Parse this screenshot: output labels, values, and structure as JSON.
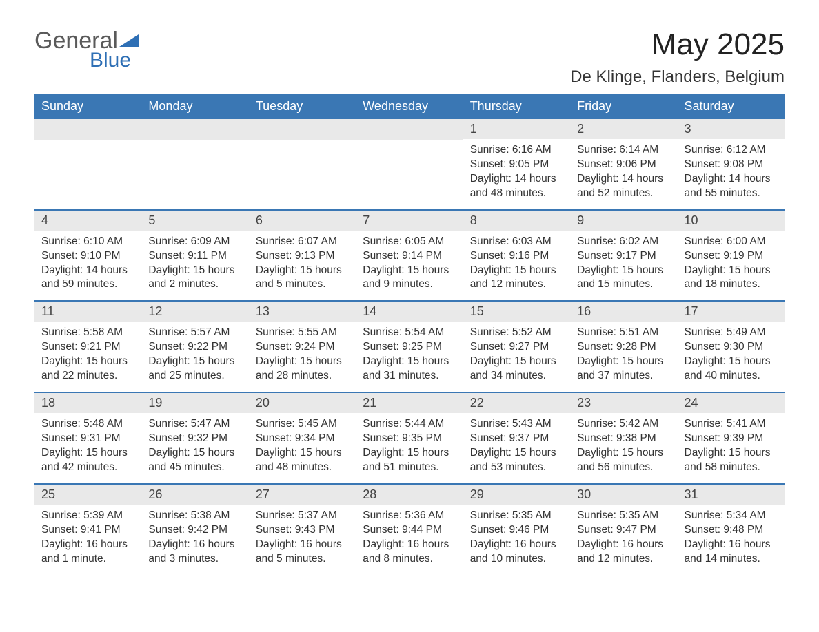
{
  "logo": {
    "word1": "General",
    "word2": "Blue"
  },
  "header": {
    "month_title": "May 2025",
    "location": "De Klinge, Flanders, Belgium"
  },
  "colors": {
    "header_bg": "#3a77b4",
    "header_text": "#ffffff",
    "day_bar_bg": "#e9e9e9",
    "day_bar_border": "#3a77b4",
    "body_text": "#333333",
    "logo_gray": "#5a5a5a",
    "logo_blue": "#2e6fb5",
    "background": "#ffffff"
  },
  "typography": {
    "month_title_fontsize": 44,
    "location_fontsize": 24,
    "column_header_fontsize": 18,
    "day_number_fontsize": 18,
    "body_fontsize": 15.5,
    "font_family": "Arial"
  },
  "columns": [
    "Sunday",
    "Monday",
    "Tuesday",
    "Wednesday",
    "Thursday",
    "Friday",
    "Saturday"
  ],
  "labels": {
    "sunrise": "Sunrise:",
    "sunset": "Sunset:",
    "daylight": "Daylight:"
  },
  "weeks": [
    [
      null,
      null,
      null,
      null,
      {
        "day": "1",
        "sunrise": "6:16 AM",
        "sunset": "9:05 PM",
        "daylight": "14 hours and 48 minutes."
      },
      {
        "day": "2",
        "sunrise": "6:14 AM",
        "sunset": "9:06 PM",
        "daylight": "14 hours and 52 minutes."
      },
      {
        "day": "3",
        "sunrise": "6:12 AM",
        "sunset": "9:08 PM",
        "daylight": "14 hours and 55 minutes."
      }
    ],
    [
      {
        "day": "4",
        "sunrise": "6:10 AM",
        "sunset": "9:10 PM",
        "daylight": "14 hours and 59 minutes."
      },
      {
        "day": "5",
        "sunrise": "6:09 AM",
        "sunset": "9:11 PM",
        "daylight": "15 hours and 2 minutes."
      },
      {
        "day": "6",
        "sunrise": "6:07 AM",
        "sunset": "9:13 PM",
        "daylight": "15 hours and 5 minutes."
      },
      {
        "day": "7",
        "sunrise": "6:05 AM",
        "sunset": "9:14 PM",
        "daylight": "15 hours and 9 minutes."
      },
      {
        "day": "8",
        "sunrise": "6:03 AM",
        "sunset": "9:16 PM",
        "daylight": "15 hours and 12 minutes."
      },
      {
        "day": "9",
        "sunrise": "6:02 AM",
        "sunset": "9:17 PM",
        "daylight": "15 hours and 15 minutes."
      },
      {
        "day": "10",
        "sunrise": "6:00 AM",
        "sunset": "9:19 PM",
        "daylight": "15 hours and 18 minutes."
      }
    ],
    [
      {
        "day": "11",
        "sunrise": "5:58 AM",
        "sunset": "9:21 PM",
        "daylight": "15 hours and 22 minutes."
      },
      {
        "day": "12",
        "sunrise": "5:57 AM",
        "sunset": "9:22 PM",
        "daylight": "15 hours and 25 minutes."
      },
      {
        "day": "13",
        "sunrise": "5:55 AM",
        "sunset": "9:24 PM",
        "daylight": "15 hours and 28 minutes."
      },
      {
        "day": "14",
        "sunrise": "5:54 AM",
        "sunset": "9:25 PM",
        "daylight": "15 hours and 31 minutes."
      },
      {
        "day": "15",
        "sunrise": "5:52 AM",
        "sunset": "9:27 PM",
        "daylight": "15 hours and 34 minutes."
      },
      {
        "day": "16",
        "sunrise": "5:51 AM",
        "sunset": "9:28 PM",
        "daylight": "15 hours and 37 minutes."
      },
      {
        "day": "17",
        "sunrise": "5:49 AM",
        "sunset": "9:30 PM",
        "daylight": "15 hours and 40 minutes."
      }
    ],
    [
      {
        "day": "18",
        "sunrise": "5:48 AM",
        "sunset": "9:31 PM",
        "daylight": "15 hours and 42 minutes."
      },
      {
        "day": "19",
        "sunrise": "5:47 AM",
        "sunset": "9:32 PM",
        "daylight": "15 hours and 45 minutes."
      },
      {
        "day": "20",
        "sunrise": "5:45 AM",
        "sunset": "9:34 PM",
        "daylight": "15 hours and 48 minutes."
      },
      {
        "day": "21",
        "sunrise": "5:44 AM",
        "sunset": "9:35 PM",
        "daylight": "15 hours and 51 minutes."
      },
      {
        "day": "22",
        "sunrise": "5:43 AM",
        "sunset": "9:37 PM",
        "daylight": "15 hours and 53 minutes."
      },
      {
        "day": "23",
        "sunrise": "5:42 AM",
        "sunset": "9:38 PM",
        "daylight": "15 hours and 56 minutes."
      },
      {
        "day": "24",
        "sunrise": "5:41 AM",
        "sunset": "9:39 PM",
        "daylight": "15 hours and 58 minutes."
      }
    ],
    [
      {
        "day": "25",
        "sunrise": "5:39 AM",
        "sunset": "9:41 PM",
        "daylight": "16 hours and 1 minute."
      },
      {
        "day": "26",
        "sunrise": "5:38 AM",
        "sunset": "9:42 PM",
        "daylight": "16 hours and 3 minutes."
      },
      {
        "day": "27",
        "sunrise": "5:37 AM",
        "sunset": "9:43 PM",
        "daylight": "16 hours and 5 minutes."
      },
      {
        "day": "28",
        "sunrise": "5:36 AM",
        "sunset": "9:44 PM",
        "daylight": "16 hours and 8 minutes."
      },
      {
        "day": "29",
        "sunrise": "5:35 AM",
        "sunset": "9:46 PM",
        "daylight": "16 hours and 10 minutes."
      },
      {
        "day": "30",
        "sunrise": "5:35 AM",
        "sunset": "9:47 PM",
        "daylight": "16 hours and 12 minutes."
      },
      {
        "day": "31",
        "sunrise": "5:34 AM",
        "sunset": "9:48 PM",
        "daylight": "16 hours and 14 minutes."
      }
    ]
  ]
}
